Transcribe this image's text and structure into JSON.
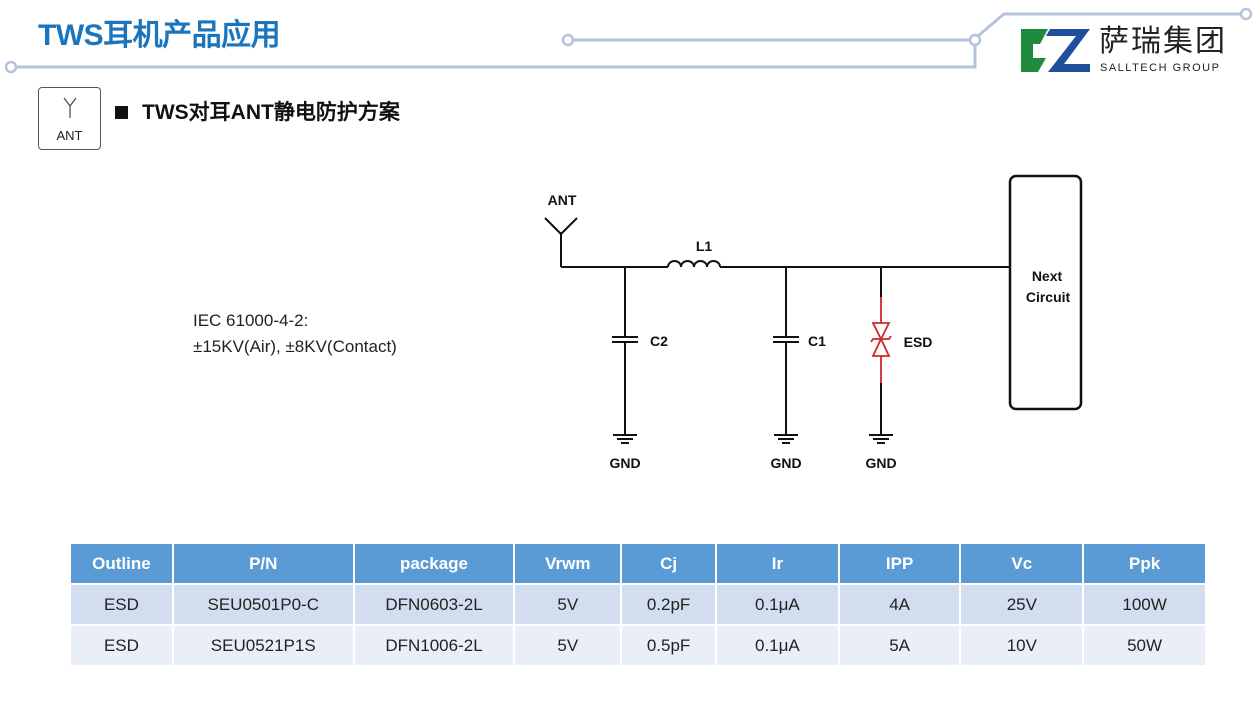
{
  "header": {
    "title": "TWS耳机产品应用",
    "logo_cn": "萨瑞集团",
    "logo_en": "SALLTECH GROUP"
  },
  "section": {
    "icon_label": "ANT",
    "subtitle": "TWS对耳ANT静电防护方案"
  },
  "spec": {
    "line1": "IEC 61000-4-2:",
    "line2": "±15KV(Air), ±8KV(Contact)"
  },
  "circuit": {
    "ant": "ANT",
    "l1": "L1",
    "c1": "C1",
    "c2": "C2",
    "esd": "ESD",
    "gnd": "GND",
    "next1": "Next",
    "next2": "Circuit",
    "esd_color": "#d0262c"
  },
  "table": {
    "headers": [
      "Outline",
      "P/N",
      "package",
      "Vrwm",
      "Cj",
      "Ir",
      "IPP",
      "Vc",
      "Ppk"
    ],
    "rows": [
      [
        "ESD",
        "SEU0501P0-C",
        "DFN0603-2L",
        "5V",
        "0.2pF",
        "0.1μA",
        "4A",
        "25V",
        "100W"
      ],
      [
        "ESD",
        "SEU0521P1S",
        "DFN1006-2L",
        "5V",
        "0.5pF",
        "0.1μA",
        "5A",
        "10V",
        "50W"
      ]
    ]
  },
  "colors": {
    "title": "#1b75bc",
    "table_header": "#5b9bd5",
    "logo_green": "#1f8a3c",
    "logo_blue": "#1f4e9c"
  }
}
